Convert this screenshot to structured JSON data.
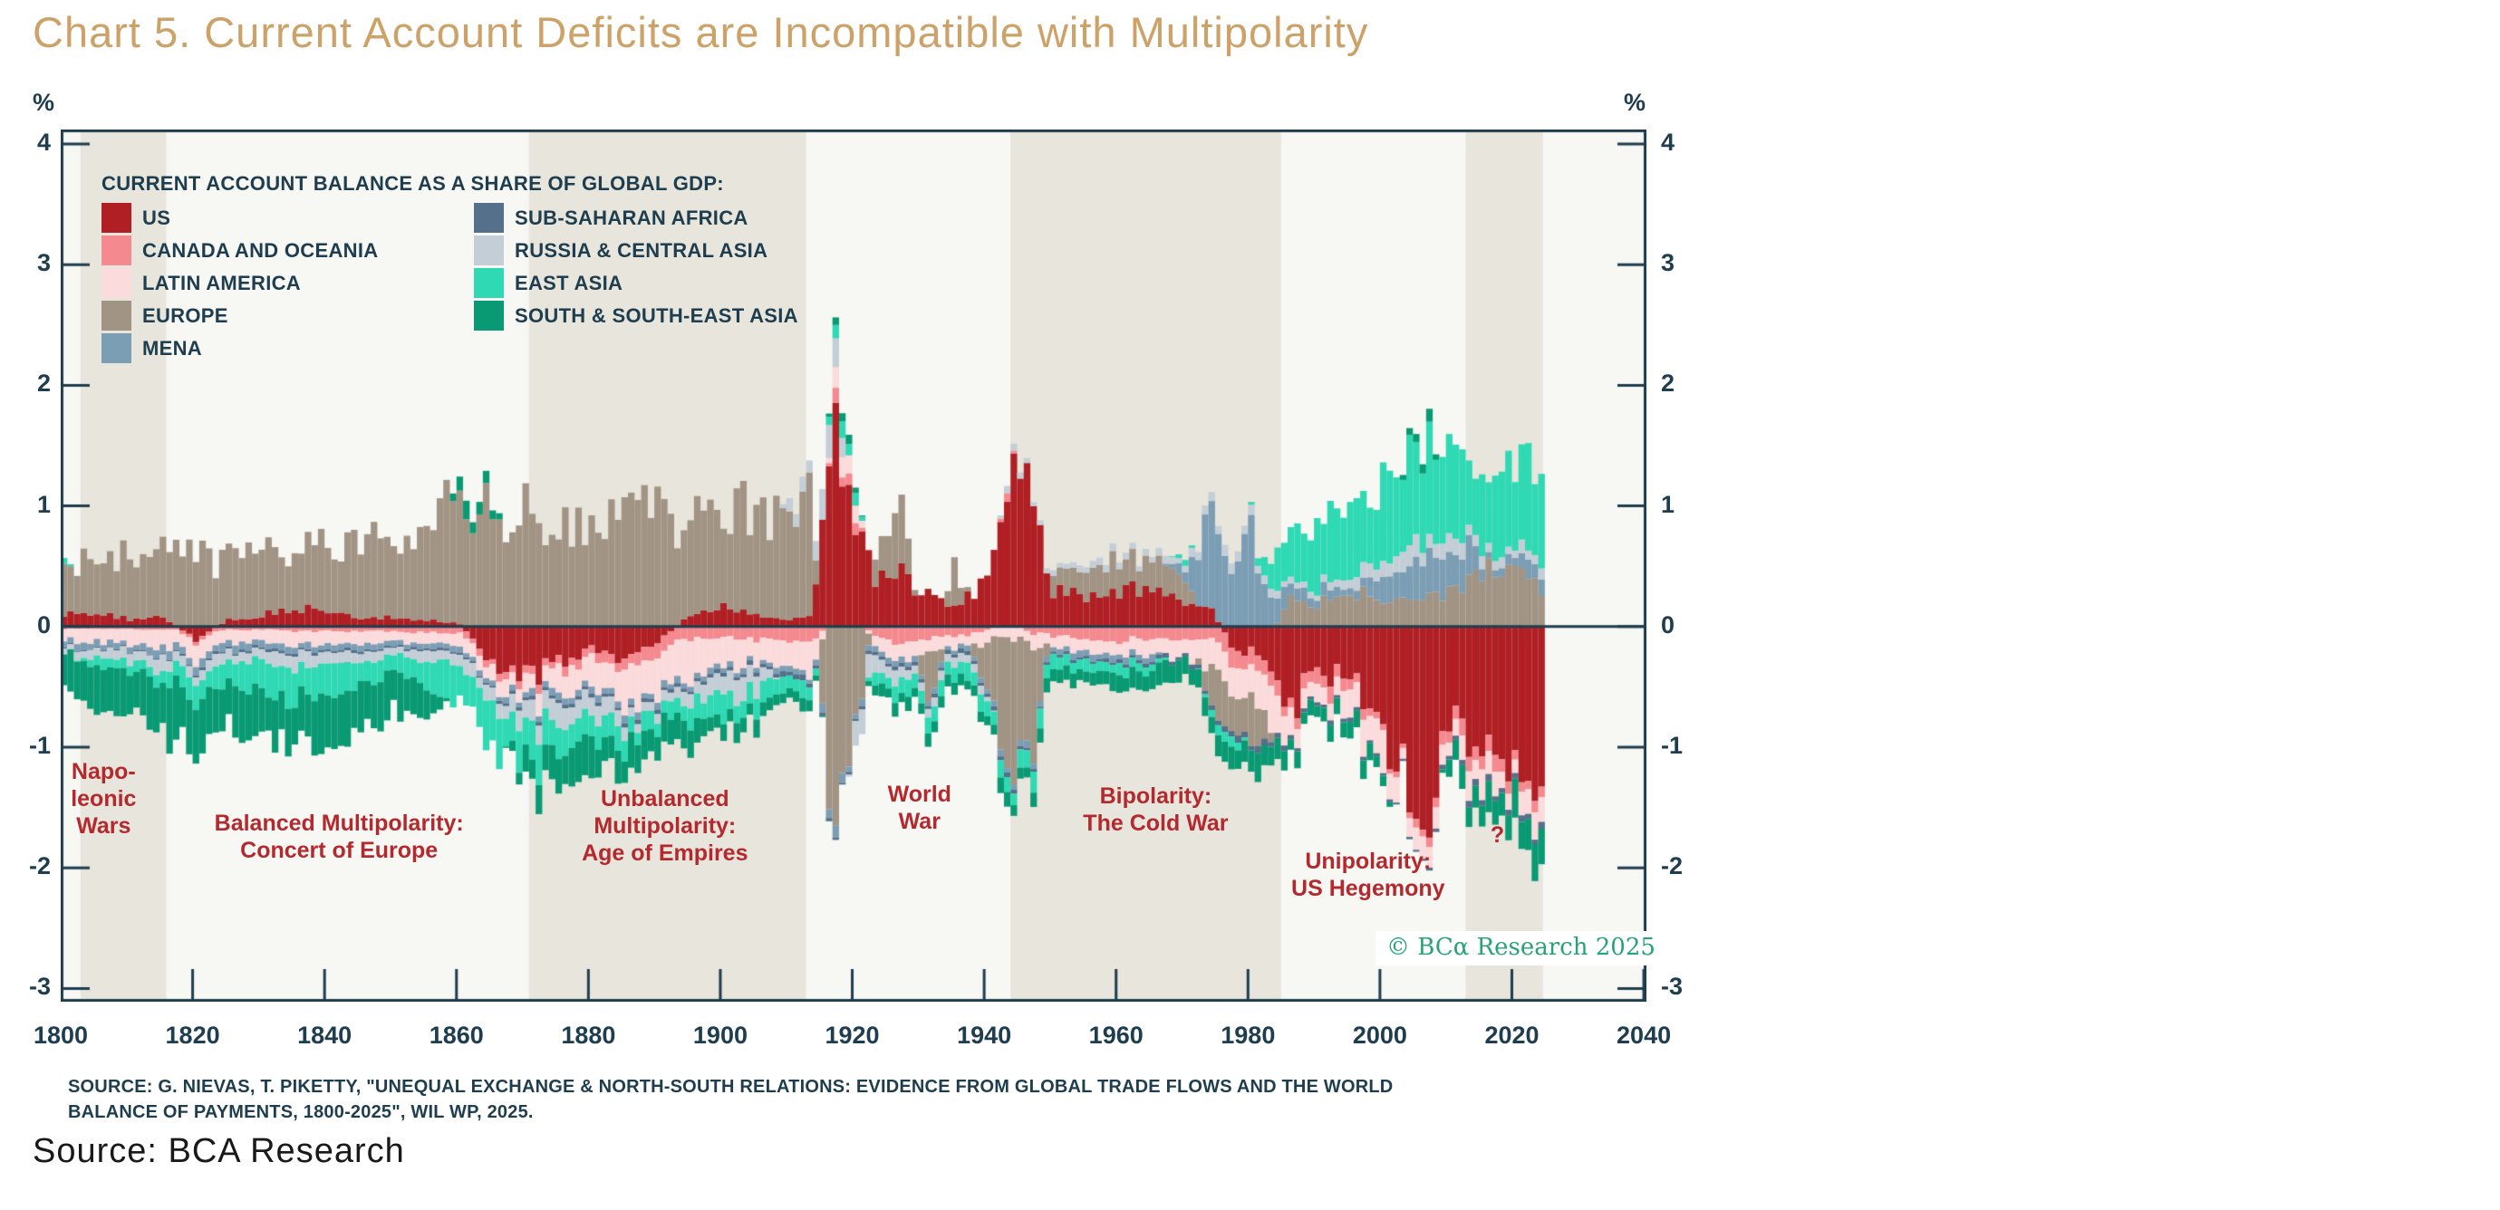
{
  "page": {
    "title": "Chart 5. Current Account Deficits are Incompatible with Multipolarity",
    "footer_source": "Source: BCA Research",
    "title_color": "#CDA269"
  },
  "chart": {
    "percent_label": "%",
    "legend_title": "CURRENT ACCOUNT BALANCE AS A SHARE OF GLOBAL GDP:",
    "source_note_line1": "SOURCE: G. NIEVAS, T. PIKETTY, \"UNEQUAL EXCHANGE & NORTH-SOUTH RELATIONS: EVIDENCE FROM GLOBAL TRADE FLOWS AND THE WORLD",
    "source_note_line2": "BALANCE OF PAYMENTS, 1800-2025\", WIL WP, 2025.",
    "copyright": "© BCα Research 2025",
    "colors": {
      "axis": "#1E3D4E",
      "plot_background": "#F7F7F4",
      "era_band": "#E7E5DC",
      "annotation_red": "#B4292E",
      "copyright_teal": "#27A377"
    }
  },
  "chart_data": {
    "type": "bar",
    "stacked": true,
    "title": "Chart 5. Current Account Deficits are Incompatible with Multipolarity",
    "ylabel": "%",
    "ylim": [
      -3,
      4
    ],
    "xlim": [
      1800,
      2040
    ],
    "x_ticks": [
      1800,
      1820,
      1840,
      1860,
      1880,
      1900,
      1920,
      1940,
      1960,
      1980,
      2000,
      2020,
      2040
    ],
    "y_ticks": [
      4,
      3,
      2,
      1,
      0,
      -1,
      -2,
      -3
    ],
    "grid": false,
    "legend_position": "top-left-inside",
    "era_bands": [
      {
        "from": 1803,
        "to": 1816
      },
      {
        "from": 1871,
        "to": 1913
      },
      {
        "from": 1944,
        "to": 1985
      },
      {
        "from": 2013,
        "to": 2024.7
      }
    ],
    "annotations": [
      {
        "lines": [
          "Napo-",
          "leonic",
          "Wars"
        ],
        "x_year": 1806.5,
        "y_value": -1.43
      },
      {
        "lines": [
          "Balanced Multipolarity:",
          "Concert of Europe"
        ],
        "x_year": 1842.2,
        "y_value": -1.74
      },
      {
        "lines": [
          "Unbalanced",
          "Multipolarity:",
          "Age of Empires"
        ],
        "x_year": 1891.6,
        "y_value": -1.65
      },
      {
        "lines": [
          "World",
          "War"
        ],
        "x_year": 1930.2,
        "y_value": -1.5
      },
      {
        "lines": [
          "Bipolarity:",
          "The Cold War"
        ],
        "x_year": 1966.0,
        "y_value": -1.52
      },
      {
        "lines": [
          "Unipolarity:",
          "US Hegemony"
        ],
        "x_year": 1998.2,
        "y_value": -2.06
      },
      {
        "lines": [
          "?"
        ],
        "x_year": 2017.8,
        "y_value": -1.73
      }
    ],
    "bar_years_start": 1800,
    "bar_years_end": 2024,
    "anchor_years": [
      1800,
      1805,
      1810,
      1815,
      1820,
      1825,
      1830,
      1835,
      1840,
      1845,
      1850,
      1855,
      1860,
      1865,
      1870,
      1875,
      1880,
      1885,
      1890,
      1895,
      1900,
      1905,
      1910,
      1913,
      1917,
      1920,
      1923,
      1927,
      1931,
      1935,
      1939,
      1943,
      1947,
      1950,
      1955,
      1960,
      1965,
      1970,
      1974,
      1978,
      1980,
      1982,
      1986,
      1990,
      1995,
      2000,
      2003,
      2007,
      2010,
      2013,
      2016,
      2020,
      2022,
      2025
    ],
    "series": [
      {
        "name": "US",
        "color": "#B01F24",
        "values": [
          0.1,
          0.12,
          0.06,
          0.08,
          -0.12,
          0.06,
          0.1,
          0.16,
          0.12,
          0.06,
          0.08,
          0.06,
          0.02,
          -0.28,
          -0.44,
          -0.3,
          -0.2,
          -0.26,
          -0.15,
          0.1,
          0.16,
          0.1,
          0.05,
          0.08,
          1.55,
          0.75,
          0.45,
          0.42,
          0.28,
          0.18,
          0.32,
          1.25,
          1.05,
          0.28,
          0.26,
          0.3,
          0.35,
          0.22,
          0.15,
          -0.28,
          -0.18,
          -0.25,
          -0.68,
          -0.38,
          -0.42,
          -0.95,
          -1.15,
          -1.45,
          -0.92,
          -0.85,
          -0.98,
          -1.1,
          -1.25,
          -1.15
        ]
      },
      {
        "name": "CANADA AND OCEANIA",
        "color": "#F4898F",
        "values": [
          -0.02,
          -0.02,
          -0.02,
          -0.03,
          -0.03,
          -0.03,
          -0.03,
          -0.04,
          -0.04,
          -0.04,
          -0.04,
          -0.05,
          -0.05,
          -0.05,
          -0.06,
          -0.06,
          -0.08,
          -0.1,
          -0.12,
          -0.1,
          -0.1,
          -0.12,
          -0.15,
          -0.16,
          0.1,
          0.1,
          -0.1,
          -0.14,
          -0.12,
          -0.08,
          -0.06,
          0.06,
          -0.06,
          -0.08,
          -0.1,
          -0.12,
          -0.1,
          -0.1,
          -0.12,
          -0.14,
          -0.14,
          -0.12,
          -0.1,
          -0.12,
          -0.1,
          -0.04,
          -0.04,
          -0.08,
          -0.1,
          -0.14,
          -0.12,
          -0.08,
          -0.08,
          -0.1
        ]
      },
      {
        "name": "LATIN AMERICA",
        "color": "#FBDBDB",
        "values": [
          -0.1,
          -0.1,
          -0.12,
          -0.14,
          -0.14,
          -0.12,
          -0.1,
          -0.12,
          -0.1,
          -0.1,
          -0.08,
          -0.1,
          -0.1,
          -0.12,
          -0.15,
          -0.2,
          -0.25,
          -0.3,
          -0.34,
          -0.3,
          -0.25,
          -0.2,
          -0.25,
          -0.26,
          0.14,
          0.12,
          -0.1,
          -0.14,
          -0.12,
          -0.1,
          -0.11,
          -0.1,
          -0.11,
          -0.1,
          -0.12,
          -0.1,
          -0.12,
          -0.15,
          -0.25,
          -0.28,
          -0.3,
          -0.35,
          -0.2,
          -0.15,
          -0.22,
          -0.28,
          -0.12,
          -0.2,
          -0.15,
          -0.22,
          -0.2,
          -0.14,
          -0.18,
          -0.2
        ]
      },
      {
        "name": "EUROPE",
        "color": "#A29484",
        "values": [
          0.38,
          0.45,
          0.52,
          0.55,
          0.58,
          0.54,
          0.48,
          0.52,
          0.56,
          0.6,
          0.66,
          0.92,
          1.05,
          0.98,
          0.95,
          0.9,
          0.86,
          0.92,
          0.96,
          0.86,
          0.82,
          0.86,
          0.92,
          0.95,
          -2.05,
          -0.85,
          0.25,
          0.55,
          -0.48,
          0.32,
          -0.25,
          -1.05,
          -0.75,
          0.16,
          0.22,
          0.26,
          0.22,
          0.26,
          -0.35,
          -0.3,
          -0.35,
          -0.2,
          0.25,
          0.18,
          0.3,
          0.22,
          0.25,
          0.28,
          0.3,
          0.42,
          0.48,
          0.42,
          0.38,
          0.35
        ]
      },
      {
        "name": "MENA",
        "color": "#7C9EB5",
        "values": [
          -0.05,
          -0.05,
          -0.05,
          -0.06,
          -0.06,
          -0.06,
          -0.05,
          -0.05,
          -0.05,
          -0.05,
          -0.04,
          -0.04,
          -0.04,
          -0.04,
          -0.05,
          -0.05,
          -0.05,
          -0.05,
          -0.05,
          -0.05,
          -0.04,
          -0.04,
          -0.04,
          -0.04,
          -0.08,
          -0.05,
          -0.04,
          -0.04,
          -0.04,
          -0.04,
          -0.04,
          -0.05,
          -0.05,
          -0.04,
          -0.05,
          -0.05,
          -0.06,
          0.12,
          0.85,
          0.5,
          0.75,
          0.4,
          0.1,
          0.1,
          0.05,
          0.18,
          0.25,
          0.35,
          0.32,
          0.28,
          0.06,
          0.08,
          0.15,
          0.1
        ]
      },
      {
        "name": "SUB-SAHARAN AFRICA",
        "color": "#54708A",
        "values": [
          -0.01,
          -0.01,
          -0.01,
          -0.01,
          -0.02,
          -0.02,
          -0.02,
          -0.02,
          -0.02,
          -0.02,
          -0.02,
          -0.02,
          -0.02,
          -0.02,
          -0.03,
          -0.03,
          -0.03,
          -0.03,
          -0.03,
          -0.03,
          -0.03,
          -0.03,
          -0.04,
          -0.04,
          -0.02,
          -0.02,
          -0.03,
          -0.03,
          -0.03,
          -0.03,
          -0.03,
          -0.03,
          -0.02,
          -0.02,
          -0.02,
          -0.03,
          -0.03,
          -0.03,
          -0.04,
          -0.05,
          -0.05,
          -0.05,
          -0.04,
          -0.03,
          -0.03,
          -0.02,
          -0.02,
          -0.02,
          -0.04,
          -0.05,
          -0.05,
          -0.04,
          -0.05,
          -0.05
        ]
      },
      {
        "name": "RUSSIA & CENTRAL ASIA",
        "color": "#C4CED7",
        "values": [
          -0.05,
          -0.07,
          -0.09,
          -0.11,
          -0.09,
          -0.08,
          -0.1,
          -0.12,
          -0.1,
          -0.08,
          -0.06,
          -0.08,
          -0.1,
          -0.12,
          -0.15,
          -0.2,
          -0.16,
          -0.11,
          -0.08,
          -0.1,
          -0.15,
          -0.2,
          0.1,
          0.12,
          0.3,
          -0.18,
          -0.14,
          -0.1,
          -0.08,
          -0.07,
          -0.06,
          0.05,
          0.04,
          0.04,
          0.05,
          0.05,
          0.05,
          0.06,
          0.08,
          0.08,
          0.07,
          0.06,
          0.05,
          0.05,
          0.08,
          0.14,
          0.15,
          0.15,
          0.12,
          0.1,
          0.08,
          0.08,
          0.1,
          0.1
        ]
      },
      {
        "name": "EAST ASIA",
        "color": "#2ED9B4",
        "values": [
          0.04,
          -0.08,
          -0.07,
          -0.1,
          -0.16,
          -0.2,
          -0.24,
          -0.28,
          -0.24,
          -0.2,
          -0.16,
          -0.22,
          -0.3,
          -0.34,
          -0.28,
          -0.24,
          -0.2,
          -0.15,
          -0.12,
          -0.15,
          -0.2,
          -0.15,
          -0.12,
          -0.12,
          0.12,
          0.1,
          -0.1,
          -0.12,
          -0.12,
          -0.1,
          -0.14,
          -0.12,
          -0.16,
          -0.14,
          -0.1,
          -0.08,
          -0.06,
          0.05,
          -0.06,
          -0.08,
          0.02,
          0.15,
          0.45,
          0.55,
          0.55,
          0.65,
          0.7,
          0.82,
          0.78,
          0.62,
          0.68,
          0.78,
          0.72,
          0.68
        ]
      },
      {
        "name": "SOUTH & SOUTH-EAST ASIA",
        "color": "#099A73",
        "values": [
          -0.28,
          -0.33,
          -0.38,
          -0.45,
          -0.42,
          -0.38,
          -0.34,
          -0.4,
          -0.44,
          -0.38,
          -0.34,
          -0.28,
          0.14,
          0.1,
          -0.18,
          -0.24,
          -0.28,
          -0.24,
          -0.2,
          -0.18,
          -0.14,
          -0.12,
          -0.1,
          -0.1,
          0.08,
          0.06,
          -0.08,
          -0.1,
          -0.09,
          -0.08,
          -0.09,
          -0.11,
          -0.1,
          -0.1,
          -0.12,
          -0.15,
          -0.15,
          -0.15,
          -0.18,
          -0.2,
          -0.2,
          -0.18,
          -0.12,
          -0.12,
          -0.16,
          -0.1,
          0.05,
          0.12,
          -0.12,
          -0.18,
          -0.22,
          -0.26,
          -0.28,
          -0.3
        ]
      }
    ]
  }
}
